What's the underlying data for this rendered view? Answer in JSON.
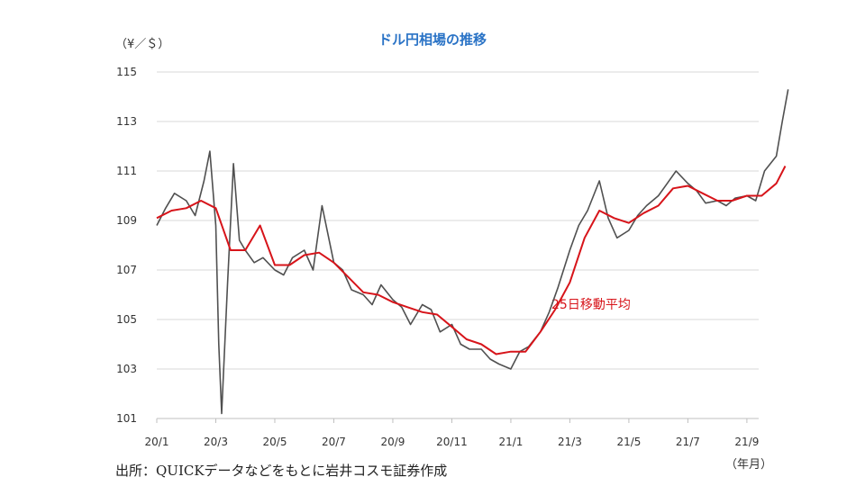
{
  "chart_data": {
    "type": "line",
    "title": "ドル円相場の推移",
    "y_unit_label": "（¥／＄）",
    "x_unit_label": "（年月）",
    "source_note": "出所：QUICKデータなどをもとに岩井コスモ証券作成",
    "ylim": [
      101,
      115
    ],
    "y_ticks": [
      "101",
      "103",
      "105",
      "107",
      "109",
      "111",
      "113",
      "115"
    ],
    "x_tick_labels": [
      "20/1",
      "20/3",
      "20/5",
      "20/7",
      "20/9",
      "20/11",
      "21/1",
      "21/3",
      "21/5",
      "21/7",
      "21/9"
    ],
    "grid": true,
    "series": [
      {
        "name": "",
        "color": "#505050",
        "points": [
          [
            "20/1",
            108.8
          ],
          [
            "20/1.3",
            109.5
          ],
          [
            "20/1.6",
            110.1
          ],
          [
            "20/2",
            109.8
          ],
          [
            "20/2.3",
            109.2
          ],
          [
            "20/2.6",
            110.6
          ],
          [
            "20/2.8",
            111.8
          ],
          [
            "20/3",
            108.8
          ],
          [
            "20/3.1",
            104.0
          ],
          [
            "20/3.2",
            101.2
          ],
          [
            "20/3.4",
            106.5
          ],
          [
            "20/3.6",
            111.3
          ],
          [
            "20/3.8",
            108.2
          ],
          [
            "20/4",
            107.8
          ],
          [
            "20/4.3",
            107.3
          ],
          [
            "20/4.6",
            107.5
          ],
          [
            "20/5",
            107.0
          ],
          [
            "20/5.3",
            106.8
          ],
          [
            "20/5.6",
            107.5
          ],
          [
            "20/6",
            107.8
          ],
          [
            "20/6.3",
            107.0
          ],
          [
            "20/6.6",
            109.6
          ],
          [
            "20/7",
            107.3
          ],
          [
            "20/7.3",
            107.0
          ],
          [
            "20/7.6",
            106.2
          ],
          [
            "20/8",
            106.0
          ],
          [
            "20/8.3",
            105.6
          ],
          [
            "20/8.6",
            106.4
          ],
          [
            "20/9",
            105.8
          ],
          [
            "20/9.3",
            105.5
          ],
          [
            "20/9.6",
            104.8
          ],
          [
            "20/10",
            105.6
          ],
          [
            "20/10.3",
            105.4
          ],
          [
            "20/10.6",
            104.5
          ],
          [
            "20/11",
            104.8
          ],
          [
            "20/11.3",
            104.0
          ],
          [
            "20/11.6",
            103.8
          ],
          [
            "20/12",
            103.8
          ],
          [
            "20/12.3",
            103.4
          ],
          [
            "20/12.6",
            103.2
          ],
          [
            "21/1",
            103.0
          ],
          [
            "21/1.3",
            103.7
          ],
          [
            "21/1.6",
            103.9
          ],
          [
            "21/2",
            104.5
          ],
          [
            "21/2.3",
            105.3
          ],
          [
            "21/2.6",
            106.3
          ],
          [
            "21/3",
            107.8
          ],
          [
            "21/3.3",
            108.8
          ],
          [
            "21/3.6",
            109.4
          ],
          [
            "21/4",
            110.6
          ],
          [
            "21/4.3",
            109.1
          ],
          [
            "21/4.6",
            108.3
          ],
          [
            "21/5",
            108.6
          ],
          [
            "21/5.3",
            109.2
          ],
          [
            "21/5.6",
            109.6
          ],
          [
            "21/6",
            110.0
          ],
          [
            "21/6.3",
            110.5
          ],
          [
            "21/6.6",
            111.0
          ],
          [
            "21/7",
            110.5
          ],
          [
            "21/7.3",
            110.2
          ],
          [
            "21/7.6",
            109.7
          ],
          [
            "21/8",
            109.8
          ],
          [
            "21/8.3",
            109.6
          ],
          [
            "21/8.6",
            109.9
          ],
          [
            "21/9",
            110.0
          ],
          [
            "21/9.3",
            109.8
          ],
          [
            "21/9.6",
            111.0
          ],
          [
            "21/10",
            111.6
          ],
          [
            "21/10.2",
            113.0
          ],
          [
            "21/10.4",
            114.3
          ]
        ]
      },
      {
        "name": "25日移動平均",
        "color": "#d7141a",
        "points": [
          [
            "20/1",
            109.1
          ],
          [
            "20/1.5",
            109.4
          ],
          [
            "20/2",
            109.5
          ],
          [
            "20/2.5",
            109.8
          ],
          [
            "20/3",
            109.5
          ],
          [
            "20/3.5",
            107.8
          ],
          [
            "20/4",
            107.8
          ],
          [
            "20/4.5",
            108.8
          ],
          [
            "20/5",
            107.2
          ],
          [
            "20/5.5",
            107.2
          ],
          [
            "20/6",
            107.6
          ],
          [
            "20/6.5",
            107.7
          ],
          [
            "20/7",
            107.3
          ],
          [
            "20/7.5",
            106.7
          ],
          [
            "20/8",
            106.1
          ],
          [
            "20/8.5",
            106.0
          ],
          [
            "20/9",
            105.7
          ],
          [
            "20/9.5",
            105.5
          ],
          [
            "20/10",
            105.3
          ],
          [
            "20/10.5",
            105.2
          ],
          [
            "20/11",
            104.7
          ],
          [
            "20/11.5",
            104.2
          ],
          [
            "20/12",
            104.0
          ],
          [
            "20/12.5",
            103.6
          ],
          [
            "21/1",
            103.7
          ],
          [
            "21/1.5",
            103.7
          ],
          [
            "21/2",
            104.5
          ],
          [
            "21/2.5",
            105.4
          ],
          [
            "21/3",
            106.5
          ],
          [
            "21/3.5",
            108.3
          ],
          [
            "21/4",
            109.4
          ],
          [
            "21/4.5",
            109.1
          ],
          [
            "21/5",
            108.9
          ],
          [
            "21/5.5",
            109.3
          ],
          [
            "21/6",
            109.6
          ],
          [
            "21/6.5",
            110.3
          ],
          [
            "21/7",
            110.4
          ],
          [
            "21/7.5",
            110.1
          ],
          [
            "21/8",
            109.8
          ],
          [
            "21/8.5",
            109.8
          ],
          [
            "21/9",
            110.0
          ],
          [
            "21/9.5",
            110.0
          ],
          [
            "21/10",
            110.5
          ],
          [
            "21/10.3",
            111.2
          ]
        ]
      }
    ]
  }
}
